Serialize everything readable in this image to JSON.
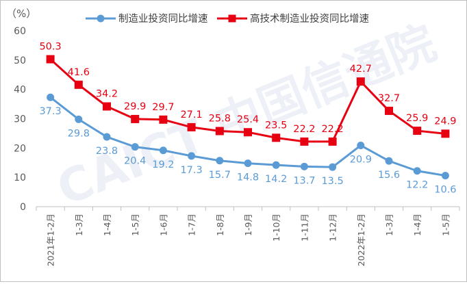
{
  "chart_data": {
    "type": "line",
    "unit_label": "（%）",
    "categories": [
      "2021年1-2月",
      "1-3月",
      "1-4月",
      "1-5月",
      "1-6月",
      "1-7月",
      "1-8月",
      "1-9月",
      "1-10月",
      "1-11月",
      "1-12月",
      "2022年1-2月",
      "1-3月",
      "1-4月",
      "1-5月"
    ],
    "y_ticks": [
      0,
      10,
      20,
      30,
      40,
      50,
      60
    ],
    "ylim": [
      0,
      60
    ],
    "legend_position": "top",
    "series": [
      {
        "name": "制造业投资同比增速",
        "color": "#5B9BD5",
        "label_color": "#5B9BD5",
        "marker": "circle",
        "values": [
          37.3,
          29.8,
          23.8,
          20.4,
          19.2,
          17.3,
          15.7,
          14.8,
          14.2,
          13.7,
          13.5,
          20.9,
          15.6,
          12.2,
          10.6
        ],
        "labels": [
          "37.3",
          "29.8",
          "23.8",
          "20.4",
          "19.2",
          "17.3",
          "15.7",
          "14.8",
          "14.2",
          "13.7",
          "13.5",
          "20.9",
          "15.6",
          "12.2",
          "10.6"
        ]
      },
      {
        "name": "高技术制造业投资同比增速",
        "color": "#E60012",
        "label_color": "#E60012",
        "marker": "square",
        "values": [
          50.3,
          41.6,
          34.2,
          29.9,
          29.7,
          27.1,
          25.8,
          25.4,
          23.5,
          22.2,
          22.2,
          42.7,
          32.7,
          25.9,
          24.9
        ],
        "labels": [
          "50.3",
          "41.6",
          "34.2",
          "29.9",
          "29.7",
          "27.1",
          "25.8",
          "25.4",
          "23.5",
          "22.2",
          "22.2",
          "42.7",
          "32.7",
          "25.9",
          "24.9"
        ]
      }
    ]
  },
  "watermark": {
    "text": "CAICT 中国信通院"
  }
}
